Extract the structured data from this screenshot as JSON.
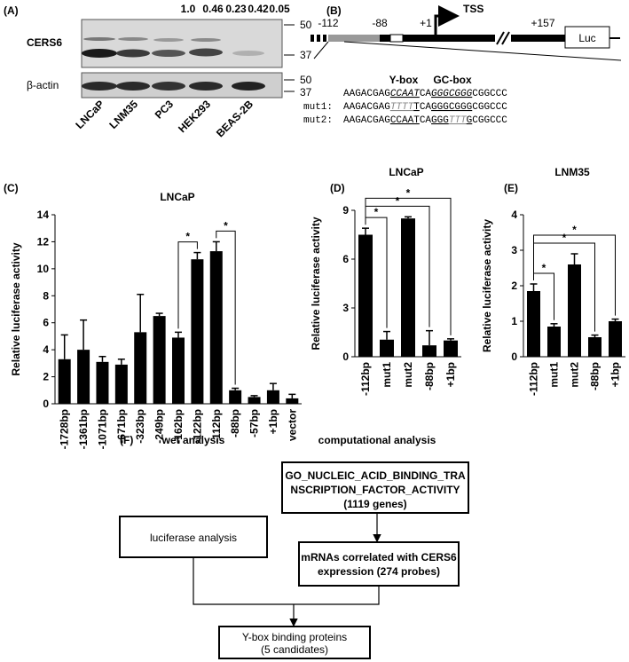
{
  "panel_a": {
    "label": "(A)",
    "quantification": [
      "1.0",
      "0.46",
      "0.23",
      "0.42",
      "0.05"
    ],
    "rows": [
      "CERS6",
      "β-actin"
    ],
    "markers": [
      "50",
      "37",
      "50",
      "37"
    ],
    "lanes": [
      "LNCaP",
      "LNM35",
      "PC3",
      "HEK293",
      "BEAS-2B"
    ]
  },
  "panel_b": {
    "label": "(B)",
    "positions": [
      "-112",
      "-88",
      "+1",
      "+157"
    ],
    "tss": "TSS",
    "reporter": "Luc",
    "motifs": [
      "Y-box",
      "GC-box"
    ],
    "sequences": [
      {
        "segments": [
          "AAGACGAG",
          "CCAAT",
          "CA",
          "GGGCGGG",
          "CGGCCC"
        ]
      },
      {
        "name": "mut1:",
        "segments": [
          "AAGACGAG",
          "TTTT",
          "T",
          "CA",
          "GGGCGGG",
          "CGGCCC"
        ]
      },
      {
        "name": "mut2:",
        "segments": [
          "AAGACGAG",
          "CCAAT",
          "CA",
          "GGG",
          "TTT",
          "G",
          "CGGCCC"
        ]
      }
    ]
  },
  "chart_data": [
    {
      "type": "bar",
      "panel": "(C)",
      "title": "LNCaP",
      "y_label": "Relative luciferase activity",
      "categories": [
        "-1728bp",
        "-1361bp",
        "-1071bp",
        "-671bp",
        "-323bp",
        "-249bp",
        "-162bp",
        "-122bp",
        "-112bp",
        "-88bp",
        "-57bp",
        "+1bp",
        "vector"
      ],
      "values": [
        3.3,
        4.0,
        3.1,
        2.9,
        5.3,
        6.5,
        4.9,
        10.7,
        11.3,
        1.0,
        0.5,
        1.0,
        0.4
      ],
      "errors": [
        1.8,
        2.2,
        0.4,
        0.4,
        2.8,
        0.2,
        0.4,
        0.5,
        0.7,
        0.15,
        0.1,
        0.5,
        0.3
      ],
      "color": "#000000",
      "ylim": [
        0,
        14
      ],
      "yticks": [
        0,
        2,
        4,
        6,
        8,
        10,
        12,
        14
      ],
      "significance": [
        {
          "bars": [
            6,
            7
          ],
          "label": "*"
        },
        {
          "bars": [
            8,
            9
          ],
          "label": "*"
        }
      ]
    },
    {
      "type": "bar",
      "panel": "(D)",
      "title": "LNCaP",
      "y_label": "Relative luciferase activity",
      "categories": [
        "-112bp",
        "mut1",
        "mut2",
        "-88bp",
        "+1bp"
      ],
      "values": [
        7.5,
        1.05,
        8.5,
        0.7,
        1.0
      ],
      "errors": [
        0.4,
        0.5,
        0.1,
        0.9,
        0.1
      ],
      "color": "#000000",
      "ylim": [
        0,
        9
      ],
      "yticks": [
        0,
        3,
        6,
        9
      ],
      "significance": [
        {
          "bars": [
            0,
            1
          ],
          "label": "*"
        },
        {
          "bars": [
            0,
            3
          ],
          "label": "*"
        },
        {
          "bars": [
            0,
            4
          ],
          "label": "*"
        }
      ]
    },
    {
      "type": "bar",
      "panel": "(E)",
      "title": "LNM35",
      "y_label": "Relative luciferase activity",
      "categories": [
        "-112bp",
        "mut1",
        "mut2",
        "-88bp",
        "+1bp"
      ],
      "values": [
        1.85,
        0.85,
        2.6,
        0.55,
        1.0
      ],
      "errors": [
        0.2,
        0.08,
        0.3,
        0.06,
        0.06
      ],
      "color": "#000000",
      "ylim": [
        0,
        4
      ],
      "yticks": [
        0,
        1,
        2,
        3,
        4
      ],
      "significance": [
        {
          "bars": [
            0,
            1
          ],
          "label": "*"
        },
        {
          "bars": [
            0,
            3
          ],
          "label": "*"
        },
        {
          "bars": [
            0,
            4
          ],
          "label": "*"
        }
      ]
    }
  ],
  "panel_f": {
    "label": "(F)",
    "wet": "wet analysis",
    "computational": "computational analysis",
    "go_box": [
      "GO_NUCLEIC_ACID_BINDING_TRA",
      "NSCRIPTION_FACTOR_ACTIVITY",
      "(1119 genes)"
    ],
    "luciferase_box": "luciferase analysis",
    "mrna_box": [
      "mRNAs correlated with CERS6",
      "expression (274 probes)"
    ],
    "result_box": [
      "Y-box binding proteins",
      "(5 candidates)"
    ]
  }
}
